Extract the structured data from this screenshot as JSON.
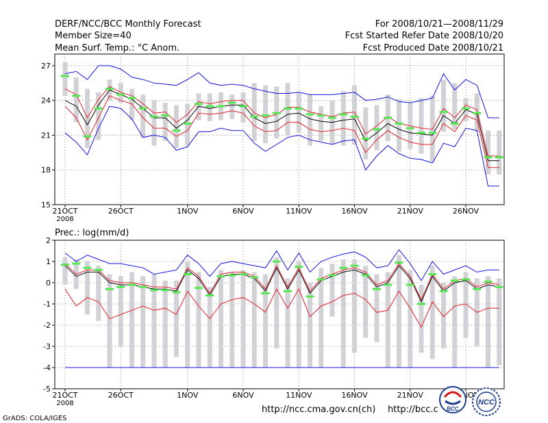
{
  "header": {
    "title": "DERF/NCC/BCC Monthly Forecast",
    "member_size": "Member Size=40",
    "variable": "Mean Surf. Temp.: °C Anom.",
    "period": "For 2008/10/21—2008/11/29",
    "started": "Fcst Started Refer Date 2008/10/20",
    "produced": "Fcst Produced Date 2008/10/21"
  },
  "footer": {
    "grads": "GrADS: COLA/IGES",
    "url1": "http://ncc.cma.gov.cn(ch)",
    "url2": "http://bcc.c"
  },
  "logos": {
    "bcc_text": "BCC",
    "ncc_text": "NCC"
  },
  "colors": {
    "box": "#d2d2d6",
    "median": "#53e84f",
    "mean": "#000000",
    "inner": "#e0202a",
    "outer": "#1010e0",
    "grid": "#888888"
  },
  "chart_data": [
    {
      "type": "box",
      "title": "Mean Surf. Temp.: °C Anom.",
      "ylim": [
        15,
        28
      ],
      "yticks": [
        15,
        18,
        21,
        24,
        27
      ],
      "xticks": [
        {
          "day": 0,
          "label": "21OCT",
          "sub": "2008"
        },
        {
          "day": 5,
          "label": "26OCT"
        },
        {
          "day": 11,
          "label": "1NOV"
        },
        {
          "day": 16,
          "label": "6NOV"
        },
        {
          "day": 21,
          "label": "11NOV"
        },
        {
          "day": 26,
          "label": "16NOV"
        },
        {
          "day": 31,
          "label": "21NOV"
        },
        {
          "day": 36,
          "label": "26NOV"
        }
      ],
      "x": [
        0,
        1,
        2,
        3,
        4,
        5,
        6,
        7,
        8,
        9,
        10,
        11,
        12,
        13,
        14,
        15,
        16,
        17,
        18,
        19,
        20,
        21,
        22,
        23,
        24,
        25,
        26,
        27,
        28,
        29,
        30,
        31,
        32,
        33,
        34,
        35,
        36,
        37,
        38,
        39
      ],
      "median": [
        26.1,
        24.4,
        20.9,
        23.3,
        25.0,
        24.5,
        24.2,
        23.3,
        22.6,
        22.7,
        21.4,
        22.0,
        23.7,
        23.5,
        23.5,
        23.8,
        23.5,
        22.6,
        22.7,
        22.9,
        23.3,
        23.3,
        22.8,
        22.7,
        22.5,
        22.8,
        22.6,
        20.7,
        21.5,
        22.5,
        22.0,
        21.6,
        21.2,
        21.2,
        23.0,
        22.0,
        23.3,
        22.9,
        19.1,
        19.1
      ],
      "mean": [
        24.0,
        23.5,
        21.9,
        23.6,
        24.9,
        24.5,
        24.1,
        23.3,
        22.5,
        22.5,
        21.6,
        22.3,
        23.5,
        23.3,
        23.5,
        23.6,
        23.6,
        22.5,
        22.0,
        22.2,
        22.8,
        22.9,
        22.4,
        22.2,
        22.1,
        22.3,
        22.4,
        20.5,
        21.2,
        22.0,
        21.5,
        21.2,
        21.1,
        21.0,
        22.7,
        22.0,
        23.2,
        22.8,
        18.8,
        18.8
      ],
      "inner_hi": [
        25.0,
        24.5,
        22.5,
        24.1,
        25.2,
        24.7,
        24.4,
        23.7,
        22.9,
        23.0,
        22.1,
        22.8,
        23.9,
        23.7,
        23.9,
        24.0,
        24.0,
        22.9,
        22.5,
        22.8,
        23.4,
        23.4,
        23.0,
        22.8,
        22.6,
        22.9,
        23.0,
        21.1,
        21.8,
        22.6,
        22.0,
        21.8,
        21.6,
        21.5,
        23.3,
        22.5,
        23.6,
        23.2,
        19.2,
        19.2
      ],
      "inner_lo": [
        23.5,
        22.5,
        20.6,
        22.5,
        24.4,
        24.0,
        23.7,
        22.5,
        21.6,
        21.6,
        20.9,
        21.4,
        22.9,
        22.8,
        22.9,
        23.1,
        22.9,
        21.8,
        21.3,
        21.4,
        22.1,
        22.1,
        21.5,
        21.3,
        21.4,
        21.6,
        21.4,
        19.5,
        20.6,
        21.4,
        20.8,
        20.4,
        20.2,
        20.2,
        22.0,
        21.3,
        22.7,
        22.3,
        18.2,
        18.2
      ],
      "outer_hi": [
        26.3,
        26.5,
        25.8,
        27.0,
        27.0,
        26.7,
        26.0,
        25.8,
        25.5,
        25.4,
        25.3,
        25.8,
        26.4,
        25.5,
        25.3,
        25.4,
        25.3,
        25.0,
        24.8,
        24.6,
        24.6,
        24.7,
        24.5,
        24.5,
        24.5,
        24.6,
        24.7,
        24.0,
        24.1,
        24.3,
        23.9,
        23.8,
        24.0,
        24.2,
        26.3,
        24.9,
        25.8,
        25.3,
        22.5,
        22.5
      ],
      "outer_lo": [
        21.2,
        20.4,
        19.3,
        21.6,
        23.5,
        23.3,
        22.4,
        20.8,
        21.0,
        20.8,
        19.7,
        20.0,
        21.3,
        21.3,
        21.6,
        21.4,
        21.4,
        20.3,
        19.6,
        20.2,
        20.8,
        21.0,
        20.6,
        20.4,
        20.2,
        20.5,
        20.6,
        18.0,
        19.2,
        20.1,
        19.4,
        19.0,
        18.9,
        18.6,
        20.3,
        20.0,
        21.6,
        21.4,
        16.6,
        16.6
      ],
      "box_hi": [
        27.3,
        26.0,
        25.0,
        24.7,
        25.8,
        25.5,
        25.0,
        24.5,
        24.0,
        23.8,
        23.6,
        23.7,
        24.6,
        24.6,
        24.7,
        24.5,
        24.7,
        25.5,
        25.3,
        25.2,
        25.5,
        24.7,
        24.5,
        23.5,
        24.0,
        24.8,
        25.3,
        23.4,
        23.6,
        24.5,
        24.1,
        23.8,
        24.2,
        24.4,
        25.8,
        25.5,
        24.2,
        24.6,
        21.4,
        21.4
      ],
      "box_lo": [
        24.4,
        22.1,
        19.9,
        20.6,
        24.0,
        23.8,
        22.3,
        20.8,
        20.1,
        20.5,
        19.9,
        20.1,
        22.3,
        22.2,
        22.3,
        22.4,
        22.1,
        20.5,
        20.3,
        20.7,
        21.0,
        21.2,
        20.1,
        20.5,
        20.2,
        20.1,
        20.2,
        18.9,
        19.7,
        20.5,
        19.6,
        19.8,
        19.4,
        18.7,
        21.3,
        21.5,
        22.2,
        21.3,
        17.6,
        17.6
      ]
    },
    {
      "type": "box",
      "title": "Prec.: log(mm/d)",
      "ylim": [
        -5,
        2
      ],
      "yticks": [
        -5,
        -4,
        -3,
        -2,
        -1,
        0,
        1,
        2
      ],
      "xticks": [
        {
          "day": 0,
          "label": "21OCT",
          "sub": "2008"
        },
        {
          "day": 5,
          "label": "26OCT"
        },
        {
          "day": 11,
          "label": "1NOV"
        },
        {
          "day": 16,
          "label": "6NOV"
        },
        {
          "day": 21,
          "label": "11NOV"
        },
        {
          "day": 26,
          "label": "16NOV"
        },
        {
          "day": 31,
          "label": "21NOV"
        },
        {
          "day": 36,
          "label": "26NOV"
        }
      ],
      "x": [
        0,
        1,
        2,
        3,
        4,
        5,
        6,
        7,
        8,
        9,
        10,
        11,
        12,
        13,
        14,
        15,
        16,
        17,
        18,
        19,
        20,
        21,
        22,
        23,
        24,
        25,
        26,
        27,
        28,
        29,
        30,
        31,
        32,
        33,
        34,
        35,
        36,
        37,
        38,
        39
      ],
      "median": [
        0.85,
        0.9,
        0.7,
        0.6,
        -0.3,
        -0.2,
        -0.1,
        -0.2,
        -0.35,
        -0.35,
        -0.45,
        0.4,
        -0.25,
        -0.6,
        0.3,
        0.35,
        0.4,
        0.25,
        -0.5,
        1.0,
        -0.4,
        0.75,
        -0.65,
        0.15,
        0.35,
        0.7,
        0.8,
        0.35,
        -0.3,
        -0.1,
        0.95,
        -0.1,
        -1.0,
        0.4,
        -0.4,
        0.1,
        0.15,
        -0.3,
        0.05,
        -0.2
      ],
      "mean": [
        0.8,
        0.3,
        0.5,
        0.5,
        0.0,
        -0.1,
        -0.1,
        -0.2,
        -0.3,
        -0.3,
        -0.4,
        0.6,
        0.2,
        -0.6,
        0.3,
        0.4,
        0.4,
        0.2,
        -0.4,
        0.7,
        -0.3,
        0.6,
        -0.5,
        0.1,
        0.3,
        0.5,
        0.6,
        0.4,
        -0.2,
        0.0,
        0.8,
        0.2,
        -0.9,
        0.3,
        -0.4,
        0.0,
        0.1,
        -0.3,
        -0.1,
        -0.2
      ],
      "inner_hi": [
        0.9,
        0.4,
        0.6,
        0.6,
        0.1,
        0.0,
        0.0,
        -0.1,
        -0.2,
        -0.2,
        -0.3,
        0.7,
        0.3,
        -0.5,
        0.4,
        0.5,
        0.5,
        0.3,
        -0.3,
        0.8,
        -0.2,
        0.7,
        -0.4,
        0.2,
        0.4,
        0.6,
        0.7,
        0.5,
        -0.1,
        0.1,
        0.9,
        0.3,
        -0.8,
        0.4,
        -0.3,
        0.1,
        0.2,
        -0.2,
        0.0,
        -0.1
      ],
      "inner_lo": [
        -0.3,
        -1.1,
        -0.7,
        -0.9,
        -1.7,
        -1.5,
        -1.3,
        -1.1,
        -1.3,
        -1.2,
        -1.5,
        -0.4,
        -1.1,
        -1.7,
        -1.0,
        -0.8,
        -0.7,
        -1.0,
        -1.4,
        -0.3,
        -1.2,
        -0.3,
        -1.6,
        -1.1,
        -0.9,
        -0.6,
        -0.5,
        -0.8,
        -1.4,
        -1.3,
        -0.4,
        -1.2,
        -2.1,
        -0.9,
        -1.6,
        -1.1,
        -1.0,
        -1.4,
        -1.2,
        -1.2
      ],
      "outer_hi": [
        1.4,
        1.0,
        1.3,
        1.1,
        0.9,
        0.9,
        0.8,
        0.7,
        0.4,
        0.5,
        0.6,
        1.3,
        0.9,
        0.3,
        0.9,
        1.0,
        0.9,
        0.8,
        0.7,
        1.5,
        0.6,
        1.4,
        0.5,
        1.0,
        1.2,
        1.35,
        1.45,
        1.2,
        0.7,
        0.8,
        1.55,
        0.9,
        0.1,
        1.0,
        0.4,
        0.6,
        0.8,
        0.5,
        0.6,
        0.6
      ],
      "outer_lo": [
        -4.0,
        -4.0,
        -4.0,
        -4.0,
        -4.0,
        -4.0,
        -4.0,
        -4.0,
        -4.0,
        -4.0,
        -4.0,
        -4.0,
        -4.0,
        -4.0,
        -4.0,
        -4.0,
        -4.0,
        -4.0,
        -4.0,
        -4.0,
        -4.0,
        -4.0,
        -4.0,
        -4.0,
        -4.0,
        -4.0,
        -4.0,
        -4.0,
        -4.0,
        -4.0,
        -4.0,
        -4.0,
        -4.0,
        -4.0,
        -4.0,
        -4.0,
        -4.0,
        -4.0,
        -4.0,
        -4.0
      ],
      "box_hi": [
        1.2,
        1.1,
        1.0,
        0.8,
        0.4,
        0.3,
        0.5,
        0.3,
        0.4,
        0.1,
        0.1,
        1.0,
        0.5,
        -0.2,
        0.6,
        0.5,
        0.6,
        0.5,
        0.4,
        1.2,
        0.2,
        1.0,
        0.0,
        0.7,
        0.9,
        1.1,
        1.1,
        0.8,
        0.4,
        0.5,
        1.3,
        0.6,
        -0.1,
        0.8,
        0.0,
        0.3,
        0.5,
        0.2,
        0.3,
        0.2
      ],
      "box_lo": [
        -0.1,
        -0.3,
        -1.5,
        -1.8,
        -4.0,
        -3.0,
        -4.0,
        -4.0,
        -4.0,
        -4.0,
        -3.5,
        -4.0,
        -4.0,
        -4.0,
        -4.0,
        -4.0,
        -4.0,
        -4.0,
        -4.0,
        -3.1,
        -4.0,
        -4.0,
        -4.0,
        -4.0,
        -1.6,
        -4.0,
        -3.3,
        -2.6,
        -2.8,
        -4.0,
        -4.0,
        -4.0,
        -3.3,
        -3.6,
        -3.1,
        -4.0,
        -2.6,
        -3.0,
        -4.0,
        -3.9
      ]
    }
  ]
}
